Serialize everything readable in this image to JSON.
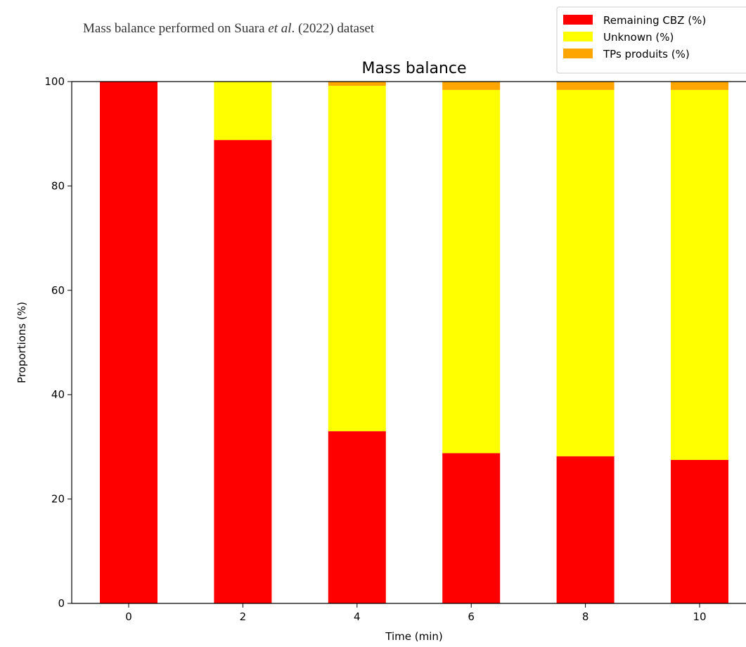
{
  "caption": {
    "prefix": "Mass balance performed on Suara ",
    "italic": "et al",
    "suffix": ". (2022) dataset"
  },
  "chart_data": {
    "type": "bar",
    "stacked": true,
    "title": "Mass balance",
    "xlabel": "Time (min)",
    "ylabel": "Proportions (%)",
    "ylim": [
      0,
      100
    ],
    "yticks": [
      0,
      20,
      40,
      60,
      80,
      100
    ],
    "categories": [
      "0",
      "2",
      "4",
      "6",
      "8",
      "10"
    ],
    "series": [
      {
        "name": "Remaining CBZ  (%)",
        "color": "#ff0000",
        "values": [
          100,
          88.8,
          33.0,
          28.8,
          28.2,
          27.5
        ]
      },
      {
        "name": "Unknown (%)",
        "color": "#ffff00",
        "values": [
          0,
          11.2,
          66.2,
          69.6,
          70.2,
          70.9
        ]
      },
      {
        "name": "TPs produits (%)",
        "color": "#ffa500",
        "values": [
          0,
          0,
          0.8,
          1.6,
          1.6,
          1.6
        ]
      }
    ],
    "legend_position": "top-right",
    "grid": false
  }
}
